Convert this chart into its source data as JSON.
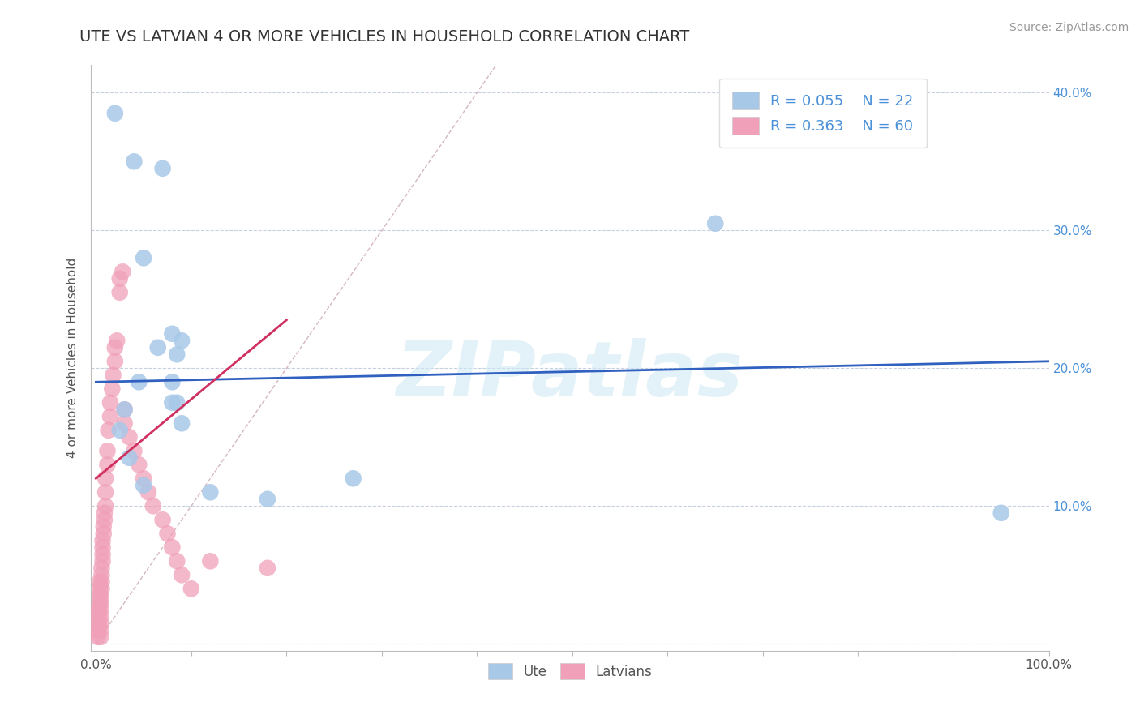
{
  "title": "UTE VS LATVIAN 4 OR MORE VEHICLES IN HOUSEHOLD CORRELATION CHART",
  "source": "Source: ZipAtlas.com",
  "ylabel": "4 or more Vehicles in Household",
  "ute_R": "0.055",
  "ute_N": "22",
  "latvian_R": "0.363",
  "latvian_N": "60",
  "ute_color": "#a8c8e8",
  "latvian_color": "#f0a0b8",
  "ute_line_color": "#3060c0",
  "latvian_line_color": "#d03060",
  "diagonal_color": "#d0b0b8",
  "grid_color": "#c8d0e0",
  "watermark": "ZIPatlas",
  "legend_ute": "Ute",
  "legend_latvians": "Latvians",
  "ute_x": [
    0.02,
    0.04,
    0.07,
    0.05,
    0.08,
    0.09,
    0.065,
    0.085,
    0.08,
    0.085,
    0.09,
    0.045,
    0.03,
    0.025,
    0.035,
    0.05,
    0.08,
    0.12,
    0.95,
    0.65,
    0.27,
    0.18
  ],
  "ute_y": [
    0.385,
    0.35,
    0.345,
    0.28,
    0.225,
    0.22,
    0.215,
    0.21,
    0.19,
    0.175,
    0.16,
    0.19,
    0.17,
    0.155,
    0.135,
    0.115,
    0.175,
    0.11,
    0.095,
    0.305,
    0.12,
    0.105
  ],
  "latvian_x": [
    0.002,
    0.002,
    0.003,
    0.003,
    0.003,
    0.004,
    0.004,
    0.004,
    0.004,
    0.005,
    0.005,
    0.005,
    0.005,
    0.005,
    0.005,
    0.005,
    0.006,
    0.006,
    0.006,
    0.006,
    0.007,
    0.007,
    0.007,
    0.007,
    0.008,
    0.008,
    0.009,
    0.009,
    0.01,
    0.01,
    0.01,
    0.012,
    0.012,
    0.013,
    0.015,
    0.015,
    0.017,
    0.018,
    0.02,
    0.02,
    0.022,
    0.025,
    0.025,
    0.028,
    0.03,
    0.03,
    0.035,
    0.04,
    0.045,
    0.05,
    0.055,
    0.06,
    0.07,
    0.075,
    0.08,
    0.085,
    0.09,
    0.1,
    0.12,
    0.18
  ],
  "latvian_y": [
    0.005,
    0.01,
    0.015,
    0.02,
    0.025,
    0.03,
    0.035,
    0.04,
    0.045,
    0.005,
    0.01,
    0.015,
    0.02,
    0.025,
    0.03,
    0.035,
    0.04,
    0.045,
    0.05,
    0.055,
    0.06,
    0.065,
    0.07,
    0.075,
    0.08,
    0.085,
    0.09,
    0.095,
    0.1,
    0.11,
    0.12,
    0.13,
    0.14,
    0.155,
    0.165,
    0.175,
    0.185,
    0.195,
    0.205,
    0.215,
    0.22,
    0.255,
    0.265,
    0.27,
    0.17,
    0.16,
    0.15,
    0.14,
    0.13,
    0.12,
    0.11,
    0.1,
    0.09,
    0.08,
    0.07,
    0.06,
    0.05,
    0.04,
    0.06,
    0.055
  ],
  "ute_line_x": [
    0.0,
    1.0
  ],
  "ute_line_y": [
    0.19,
    0.205
  ],
  "latvian_line_x": [
    0.0,
    0.2
  ],
  "latvian_line_y": [
    0.12,
    0.235
  ],
  "xlim": [
    -0.005,
    1.0
  ],
  "ylim": [
    -0.005,
    0.42
  ],
  "ytick_vals": [
    0.0,
    0.1,
    0.2,
    0.3,
    0.4
  ],
  "ytick_labels_right": [
    "",
    "10.0%",
    "20.0%",
    "30.0%",
    "40.0%"
  ]
}
